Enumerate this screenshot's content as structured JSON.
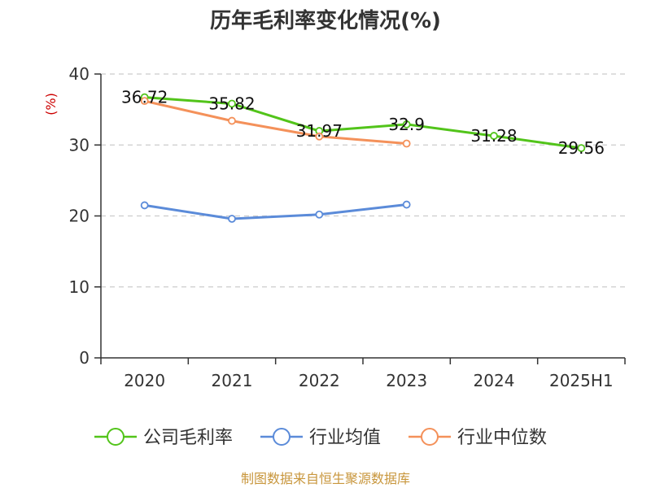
{
  "chart_data": {
    "type": "line",
    "title": "历年毛利率变化情况(%)",
    "ylabel": "(%)",
    "categories": [
      "2020",
      "2021",
      "2022",
      "2023",
      "2024",
      "2025H1"
    ],
    "ylim": [
      0,
      40
    ],
    "yticks": [
      0,
      10,
      20,
      30,
      40
    ],
    "grid": true,
    "legend_position": "bottom",
    "series": [
      {
        "name": "公司毛利率",
        "color": "#52c41a",
        "values": [
          36.72,
          35.82,
          31.97,
          32.9,
          31.28,
          29.56
        ],
        "labels": [
          "36.72",
          "35.82",
          "31.97",
          "32.9",
          "31.28",
          "29.56"
        ]
      },
      {
        "name": "行业均值",
        "color": "#5b8bd9",
        "values": [
          21.5,
          19.6,
          20.2,
          21.6,
          null,
          null
        ]
      },
      {
        "name": "行业中位数",
        "color": "#f4915a",
        "values": [
          36.2,
          33.4,
          31.2,
          30.2,
          null,
          null
        ]
      }
    ]
  },
  "source": "制图数据来自恒生聚源数据库"
}
